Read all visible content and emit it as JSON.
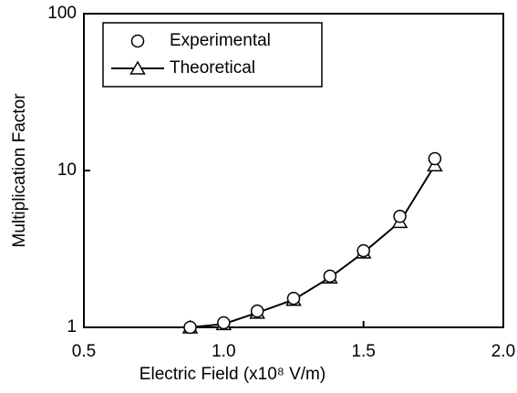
{
  "chart_data": {
    "type": "line",
    "x_label": "Electric Field (x10⁸ V/m)",
    "y_label": "Multiplication Factor",
    "log_y": true,
    "xlim": [
      0.5,
      2.0
    ],
    "xticks": [
      0.5,
      {
        "value": 1.0,
        "label": "1.0"
      },
      1.5,
      {
        "value": 2.0,
        "label": "2.0"
      }
    ],
    "ylim": [
      1,
      100
    ],
    "yticks": [
      1,
      10,
      100
    ],
    "legend": "upper left",
    "series": [
      {
        "name": "Experimental",
        "color": "#000000",
        "marker": "circle",
        "line": false,
        "x": [
          0.88,
          1.0,
          1.12,
          1.25,
          1.38,
          1.5,
          1.63,
          1.755
        ],
        "values": [
          1.0,
          1.07,
          1.27,
          1.53,
          2.12,
          3.08,
          5.1,
          11.9
        ]
      },
      {
        "name": "Theoretical",
        "color": "#000000",
        "marker": "triangle",
        "line": true,
        "x": [
          0.88,
          1.0,
          1.12,
          1.25,
          1.38,
          1.5,
          1.63,
          1.755
        ],
        "values": [
          1.0,
          1.05,
          1.24,
          1.5,
          2.08,
          3.0,
          4.7,
          10.8
        ]
      }
    ]
  }
}
